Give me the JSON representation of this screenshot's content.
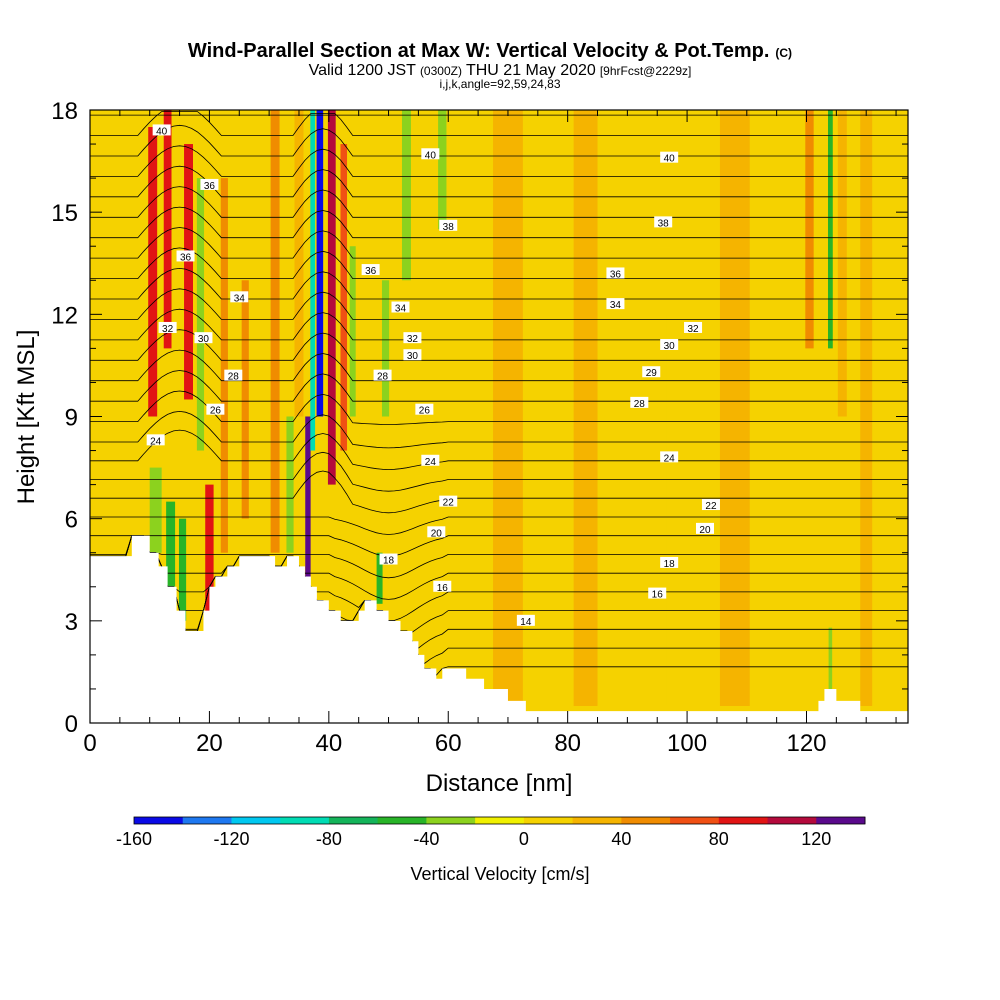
{
  "chart_data": {
    "type": "heatmap",
    "title": "Wind-Parallel Section at Max W: Vertical Velocity & Pot.Temp.",
    "title_units": "(C)",
    "subtitle": {
      "prefix": "Valid 1200 JST",
      "utc": "(0300Z)",
      "date": "THU 21 May 2020",
      "forecast": "[9hrFcst@2229z]"
    },
    "indices": "i,j,k,angle=92,59,24,83",
    "xlabel": "Distance [nm]",
    "ylabel": "Height [Kft MSL]",
    "xlim": [
      0,
      137
    ],
    "ylim": [
      0,
      18
    ],
    "x_ticks": [
      0,
      20,
      40,
      60,
      80,
      100,
      120
    ],
    "y_ticks": [
      0,
      3,
      6,
      9,
      12,
      15,
      18
    ],
    "colorbar": {
      "label": "Vertical Velocity [cm/s]",
      "levels": [
        -160,
        -140,
        -120,
        -100,
        -80,
        -60,
        -40,
        -20,
        0,
        20,
        40,
        60,
        80,
        100,
        120,
        140
      ],
      "tick_labels": [
        "-160",
        "-120",
        "-80",
        "-40",
        "0",
        "40",
        "80",
        "120"
      ],
      "colors": [
        "#0a0ae6",
        "#1e78f0",
        "#00c8f0",
        "#00dcb4",
        "#14b45a",
        "#28b428",
        "#8cd21e",
        "#f0f000",
        "#f5d200",
        "#f5b400",
        "#f08c00",
        "#f05014",
        "#e11414",
        "#b40a3c",
        "#5a0a8c"
      ]
    },
    "background_value": 10,
    "terrain_kft": [
      [
        0,
        4.9
      ],
      [
        7,
        4.9
      ],
      [
        7,
        5.5
      ],
      [
        10,
        5.5
      ],
      [
        10,
        5
      ],
      [
        11.5,
        5
      ],
      [
        11.5,
        4.6
      ],
      [
        13,
        4.6
      ],
      [
        13,
        4
      ],
      [
        14.5,
        4
      ],
      [
        14.5,
        3.3
      ],
      [
        16,
        3.3
      ],
      [
        16,
        2.7
      ],
      [
        19,
        2.7
      ],
      [
        19,
        3.3
      ],
      [
        20,
        3.3
      ],
      [
        20,
        4
      ],
      [
        21,
        4
      ],
      [
        21,
        4.3
      ],
      [
        23,
        4.3
      ],
      [
        23,
        4.6
      ],
      [
        25,
        4.6
      ],
      [
        25,
        4.9
      ],
      [
        31,
        4.9
      ],
      [
        31,
        4.6
      ],
      [
        33,
        4.6
      ],
      [
        33,
        4.9
      ],
      [
        35,
        4.9
      ],
      [
        35,
        4.6
      ],
      [
        36,
        4.6
      ],
      [
        36,
        4.3
      ],
      [
        37,
        4.3
      ],
      [
        37,
        4
      ],
      [
        38,
        4
      ],
      [
        38,
        3.6
      ],
      [
        40,
        3.6
      ],
      [
        40,
        3.3
      ],
      [
        42,
        3.3
      ],
      [
        42,
        3
      ],
      [
        45,
        3
      ],
      [
        45,
        3.3
      ],
      [
        46,
        3.3
      ],
      [
        46,
        3.6
      ],
      [
        48,
        3.6
      ],
      [
        48,
        3.3
      ],
      [
        50,
        3.3
      ],
      [
        50,
        3
      ],
      [
        52,
        3
      ],
      [
        52,
        2.7
      ],
      [
        54,
        2.7
      ],
      [
        54,
        2.4
      ],
      [
        55,
        2.4
      ],
      [
        55,
        2
      ],
      [
        56,
        2
      ],
      [
        56,
        1.6
      ],
      [
        58,
        1.6
      ],
      [
        58,
        1.3
      ],
      [
        59,
        1.3
      ],
      [
        59,
        1.6
      ],
      [
        63,
        1.6
      ],
      [
        63,
        1.3
      ],
      [
        66,
        1.3
      ],
      [
        66,
        1
      ],
      [
        70,
        1
      ],
      [
        70,
        0.65
      ],
      [
        73,
        0.65
      ],
      [
        73,
        0.35
      ],
      [
        122,
        0.35
      ],
      [
        122,
        0.65
      ],
      [
        123,
        0.65
      ],
      [
        123,
        1
      ],
      [
        125,
        1
      ],
      [
        125,
        0.65
      ],
      [
        129,
        0.65
      ],
      [
        129,
        0.35
      ],
      [
        137,
        0.35
      ]
    ],
    "isentrope_levels_C": [
      14,
      15,
      16,
      17,
      18,
      19,
      20,
      21,
      22,
      23,
      24,
      25,
      26,
      27,
      28,
      29,
      30,
      31,
      32,
      33,
      34,
      35,
      36,
      37,
      38,
      39,
      40,
      41,
      42
    ],
    "isentrope_labels": [
      {
        "value": "14",
        "x": 73,
        "y": 3.0
      },
      {
        "value": "16",
        "x": 59,
        "y": 4.0
      },
      {
        "value": "16",
        "x": 95,
        "y": 3.8
      },
      {
        "value": "18",
        "x": 50,
        "y": 4.8
      },
      {
        "value": "18",
        "x": 97,
        "y": 4.7
      },
      {
        "value": "20",
        "x": 58,
        "y": 5.6
      },
      {
        "value": "20",
        "x": 103,
        "y": 5.7
      },
      {
        "value": "22",
        "x": 60,
        "y": 6.5
      },
      {
        "value": "22",
        "x": 104,
        "y": 6.4
      },
      {
        "value": "24",
        "x": 11,
        "y": 8.3
      },
      {
        "value": "24",
        "x": 57,
        "y": 7.7
      },
      {
        "value": "24",
        "x": 97,
        "y": 7.8
      },
      {
        "value": "26",
        "x": 21,
        "y": 9.2
      },
      {
        "value": "26",
        "x": 56,
        "y": 9.2
      },
      {
        "value": "28",
        "x": 24,
        "y": 10.2
      },
      {
        "value": "28",
        "x": 49,
        "y": 10.2
      },
      {
        "value": "28",
        "x": 92,
        "y": 9.4
      },
      {
        "value": "29",
        "x": 94,
        "y": 10.3
      },
      {
        "value": "30",
        "x": 19,
        "y": 11.3
      },
      {
        "value": "30",
        "x": 54,
        "y": 10.8
      },
      {
        "value": "30",
        "x": 97,
        "y": 11.1
      },
      {
        "value": "32",
        "x": 13,
        "y": 11.6
      },
      {
        "value": "32",
        "x": 54,
        "y": 11.3
      },
      {
        "value": "32",
        "x": 101,
        "y": 11.6
      },
      {
        "value": "34",
        "x": 25,
        "y": 12.5
      },
      {
        "value": "34",
        "x": 52,
        "y": 12.2
      },
      {
        "value": "34",
        "x": 88,
        "y": 12.3
      },
      {
        "value": "36",
        "x": 16,
        "y": 13.7
      },
      {
        "value": "36",
        "x": 47,
        "y": 13.3
      },
      {
        "value": "36",
        "x": 88,
        "y": 13.2
      },
      {
        "value": "36",
        "x": 20,
        "y": 15.8
      },
      {
        "value": "38",
        "x": 60,
        "y": 14.6
      },
      {
        "value": "38",
        "x": 96,
        "y": 14.7
      },
      {
        "value": "40",
        "x": 12,
        "y": 17.4
      },
      {
        "value": "40",
        "x": 57,
        "y": 16.7
      },
      {
        "value": "40",
        "x": 97,
        "y": 16.6
      }
    ],
    "velocity_features": [
      {
        "x": 10.5,
        "width": 1.5,
        "z_min": 9,
        "z_max": 17.5,
        "w": 80
      },
      {
        "x": 13,
        "width": 1.3,
        "z_min": 11,
        "z_max": 18,
        "w": 85
      },
      {
        "x": 16.5,
        "width": 1.5,
        "z_min": 9.5,
        "z_max": 17,
        "w": 90
      },
      {
        "x": 18.5,
        "width": 1.2,
        "z_min": 8,
        "z_max": 16,
        "w": -40
      },
      {
        "x": 20,
        "width": 1.4,
        "z_min": 3,
        "z_max": 7,
        "w": 90
      },
      {
        "x": 15.5,
        "width": 1.2,
        "z_min": 3,
        "z_max": 6,
        "w": -60
      },
      {
        "x": 13.5,
        "width": 1.5,
        "z_min": 4,
        "z_max": 6.5,
        "w": -45
      },
      {
        "x": 11,
        "width": 2,
        "z_min": 5,
        "z_max": 7.5,
        "w": -35
      },
      {
        "x": 22.5,
        "width": 1.2,
        "z_min": 5,
        "z_max": 16,
        "w": 50
      },
      {
        "x": 26,
        "width": 1.2,
        "z_min": 6,
        "z_max": 13,
        "w": 45
      },
      {
        "x": 31,
        "width": 1.5,
        "z_min": 5,
        "z_max": 18,
        "w": 45
      },
      {
        "x": 33.5,
        "width": 1.2,
        "z_min": 5,
        "z_max": 9,
        "w": -40
      },
      {
        "x": 36.5,
        "width": 0.9,
        "z_min": 4,
        "z_max": 9,
        "w": 120
      },
      {
        "x": 38.5,
        "width": 1.1,
        "z_min": 9,
        "z_max": 18,
        "w": -160
      },
      {
        "x": 37.3,
        "width": 0.8,
        "z_min": 8,
        "z_max": 18,
        "w": -90
      },
      {
        "x": 40.5,
        "width": 1.3,
        "z_min": 7,
        "z_max": 18,
        "w": 100
      },
      {
        "x": 42.5,
        "width": 1.1,
        "z_min": 8,
        "z_max": 17,
        "w": 70
      },
      {
        "x": 44,
        "width": 1,
        "z_min": 9,
        "z_max": 14,
        "w": -30
      },
      {
        "x": 48.5,
        "width": 1,
        "z_min": 3.5,
        "z_max": 5,
        "w": -55
      },
      {
        "x": 49.5,
        "width": 1.2,
        "z_min": 9,
        "z_max": 13,
        "w": -40
      },
      {
        "x": 53,
        "width": 1.5,
        "z_min": 13,
        "z_max": 18,
        "w": -35
      },
      {
        "x": 59,
        "width": 1.4,
        "z_min": 14.5,
        "z_max": 18,
        "w": -40
      },
      {
        "x": 120.5,
        "width": 1.4,
        "z_min": 11,
        "z_max": 18,
        "w": 55
      },
      {
        "x": 124,
        "width": 0.8,
        "z_min": 11,
        "z_max": 18,
        "w": -45
      },
      {
        "x": 124,
        "width": 0.6,
        "z_min": 0.5,
        "z_max": 2.8,
        "w": -40
      },
      {
        "x": 126,
        "width": 1.5,
        "z_min": 9,
        "z_max": 18,
        "w": 30
      },
      {
        "x": 130,
        "width": 2,
        "z_min": 0.5,
        "z_max": 18,
        "w": 20
      },
      {
        "x": 35,
        "width": 1.5,
        "z_min": 9,
        "z_max": 18,
        "w": 35
      },
      {
        "x": 70,
        "width": 5,
        "z_min": 0.5,
        "z_max": 18,
        "w": 20
      },
      {
        "x": 83,
        "width": 4,
        "z_min": 0.5,
        "z_max": 18,
        "w": 20
      },
      {
        "x": 108,
        "width": 5,
        "z_min": 0.5,
        "z_max": 18,
        "w": 20
      },
      {
        "x": 95,
        "width": 3,
        "z_min": 0.5,
        "z_max": 12,
        "w": 0
      }
    ]
  }
}
